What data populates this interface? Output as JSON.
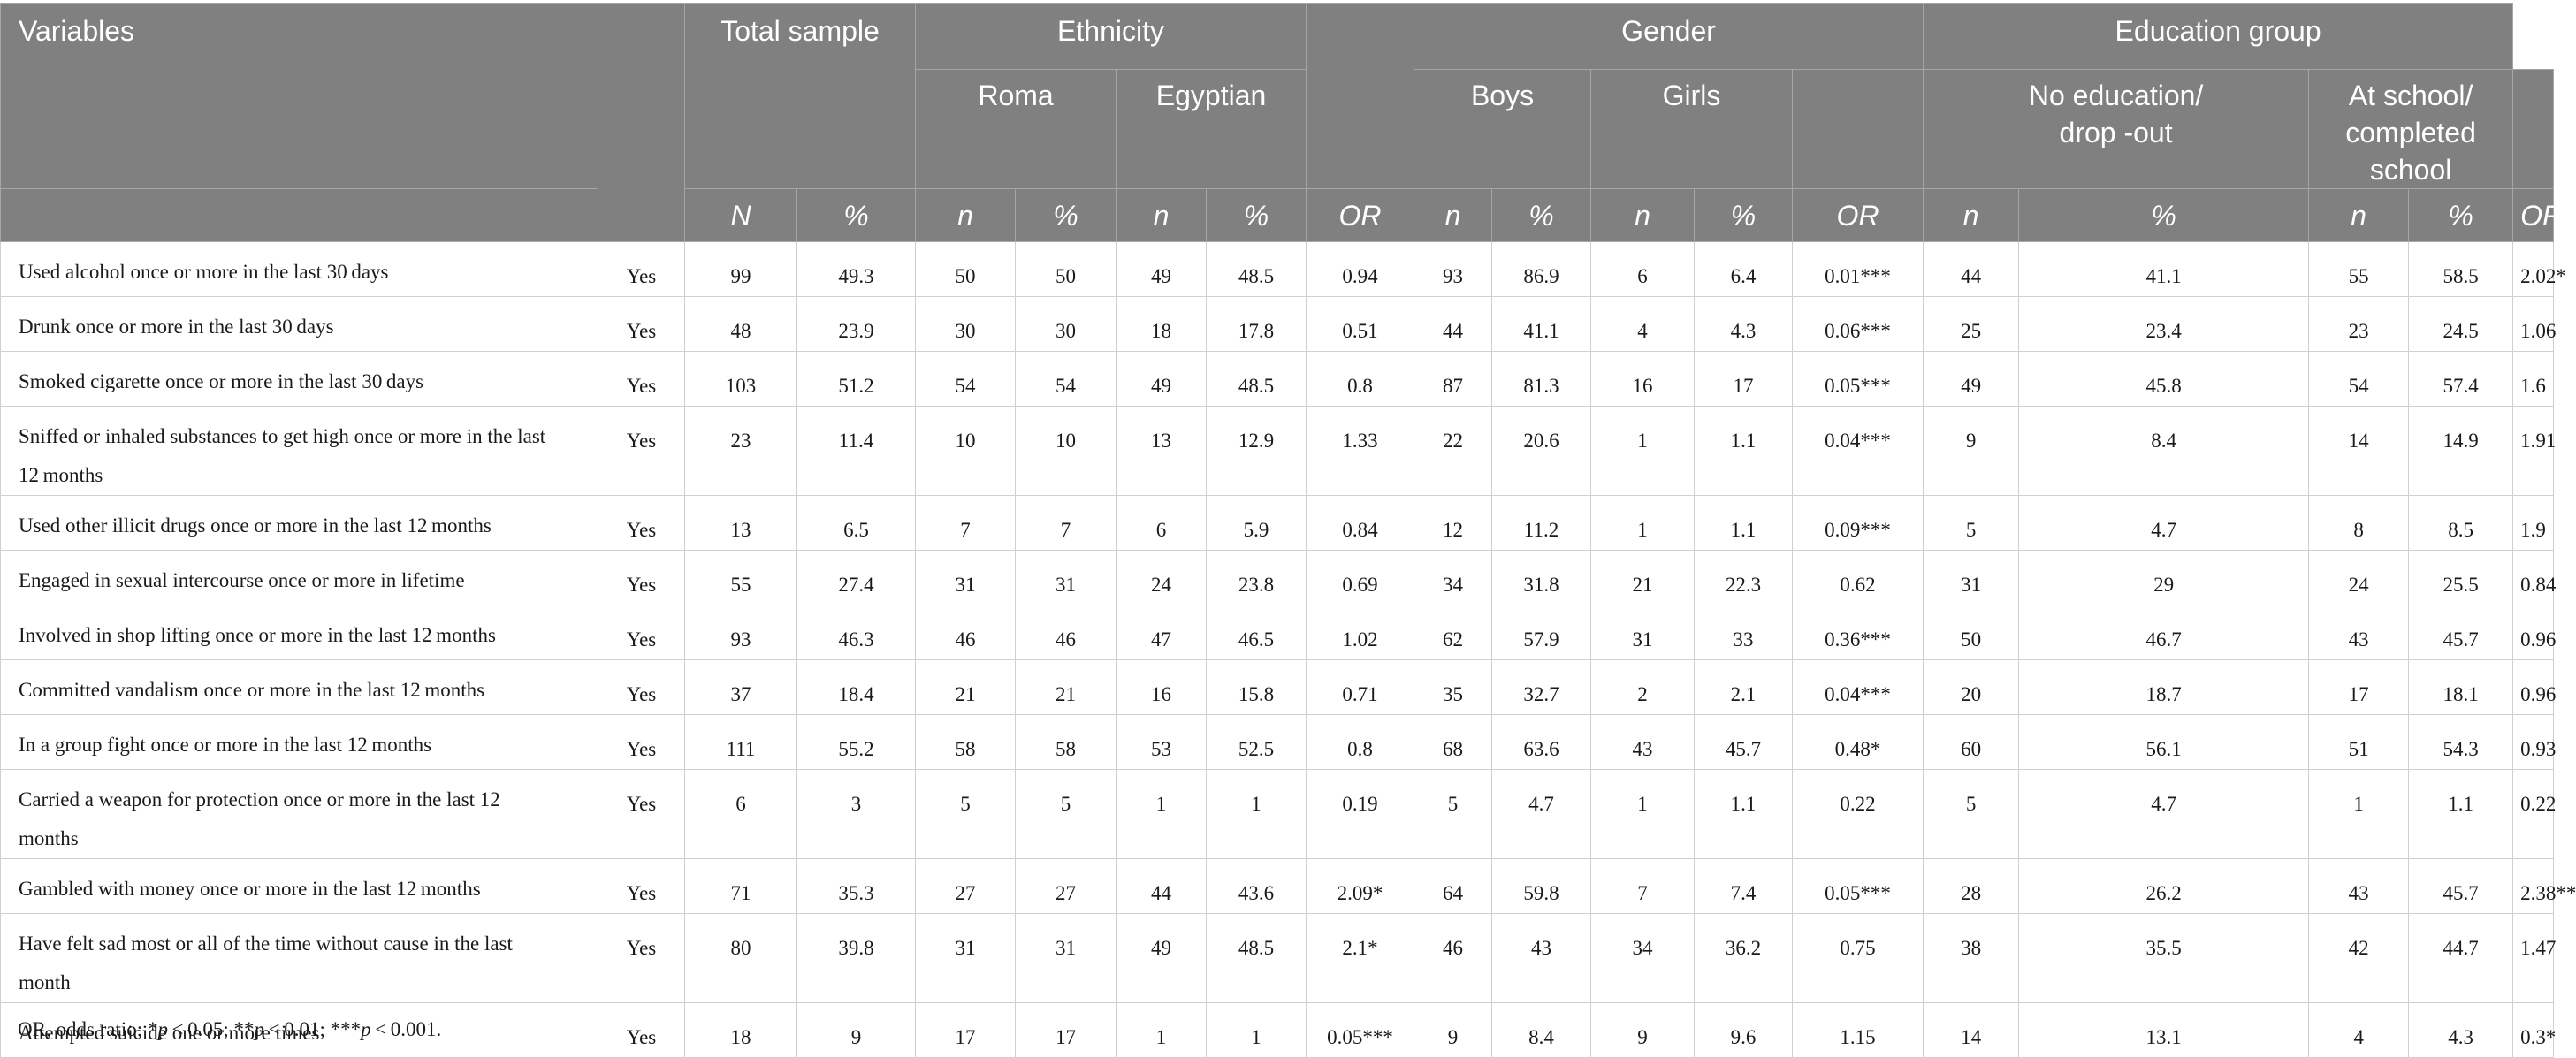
{
  "table": {
    "header": {
      "variables": "Variables",
      "total_sample": "Total sample",
      "ethnicity": "Ethnicity",
      "roma": "Roma",
      "egyptian": "Egyptian",
      "gender": "Gender",
      "boys": "Boys",
      "girls": "Girls",
      "education_group": "Education group",
      "no_education_line1": "No education/",
      "no_education_line2": "drop -out",
      "at_school_line1": "At school/",
      "at_school_line2": "completed school",
      "N": "N",
      "n": "n",
      "pct": "%",
      "OR": "OR"
    },
    "rows": [
      {
        "label": "Used alcohol once or more in the last 30 days",
        "resp": "Yes",
        "vals": [
          "99",
          "49.3",
          "50",
          "50",
          "49",
          "48.5",
          "0.94",
          "93",
          "86.9",
          "6",
          "6.4",
          "0.01***",
          "44",
          "41.1",
          "55",
          "58.5",
          "2.02*"
        ]
      },
      {
        "label": "Drunk once or more in the last 30 days",
        "resp": "Yes",
        "vals": [
          "48",
          "23.9",
          "30",
          "30",
          "18",
          "17.8",
          "0.51",
          "44",
          "41.1",
          "4",
          "4.3",
          "0.06***",
          "25",
          "23.4",
          "23",
          "24.5",
          "1.06"
        ]
      },
      {
        "label": "Smoked cigarette once or more in the last 30 days",
        "resp": "Yes",
        "vals": [
          "103",
          "51.2",
          "54",
          "54",
          "49",
          "48.5",
          "0.8",
          "87",
          "81.3",
          "16",
          "17",
          "0.05***",
          "49",
          "45.8",
          "54",
          "57.4",
          "1.6"
        ]
      },
      {
        "label": "Sniffed or inhaled substances to get high once or more in the last 12 months",
        "resp": "Yes",
        "vals": [
          "23",
          "11.4",
          "10",
          "10",
          "13",
          "12.9",
          "1.33",
          "22",
          "20.6",
          "1",
          "1.1",
          "0.04***",
          "9",
          "8.4",
          "14",
          "14.9",
          "1.91"
        ]
      },
      {
        "label": "Used other illicit drugs once or more in the last 12 months",
        "resp": "Yes",
        "vals": [
          "13",
          "6.5",
          "7",
          "7",
          "6",
          "5.9",
          "0.84",
          "12",
          "11.2",
          "1",
          "1.1",
          "0.09***",
          "5",
          "4.7",
          "8",
          "8.5",
          "1.9"
        ]
      },
      {
        "label": "Engaged in sexual intercourse once or more in lifetime",
        "resp": "Yes",
        "vals": [
          "55",
          "27.4",
          "31",
          "31",
          "24",
          "23.8",
          "0.69",
          "34",
          "31.8",
          "21",
          "22.3",
          "0.62",
          "31",
          "29",
          "24",
          "25.5",
          "0.84"
        ]
      },
      {
        "label": "Involved in shop lifting once or more in the last 12 months",
        "resp": "Yes",
        "vals": [
          "93",
          "46.3",
          "46",
          "46",
          "47",
          "46.5",
          "1.02",
          "62",
          "57.9",
          "31",
          "33",
          "0.36***",
          "50",
          "46.7",
          "43",
          "45.7",
          "0.96"
        ]
      },
      {
        "label": "Committed vandalism once or more in the last 12 months",
        "resp": "Yes",
        "vals": [
          "37",
          "18.4",
          "21",
          "21",
          "16",
          "15.8",
          "0.71",
          "35",
          "32.7",
          "2",
          "2.1",
          "0.04***",
          "20",
          "18.7",
          "17",
          "18.1",
          "0.96"
        ]
      },
      {
        "label": "In a group fight once or more in the last 12 months",
        "resp": "Yes",
        "vals": [
          "111",
          "55.2",
          "58",
          "58",
          "53",
          "52.5",
          "0.8",
          "68",
          "63.6",
          "43",
          "45.7",
          "0.48*",
          "60",
          "56.1",
          "51",
          "54.3",
          "0.93"
        ]
      },
      {
        "label": "Carried a weapon for protection once or more in the last 12 months",
        "resp": "Yes",
        "vals": [
          "6",
          "3",
          "5",
          "5",
          "1",
          "1",
          "0.19",
          "5",
          "4.7",
          "1",
          "1.1",
          "0.22",
          "5",
          "4.7",
          "1",
          "1.1",
          "0.22"
        ]
      },
      {
        "label": "Gambled with money once or more in the last 12 months",
        "resp": "Yes",
        "vals": [
          "71",
          "35.3",
          "27",
          "27",
          "44",
          "43.6",
          "2.09*",
          "64",
          "59.8",
          "7",
          "7.4",
          "0.05***",
          "28",
          "26.2",
          "43",
          "45.7",
          "2.38**"
        ]
      },
      {
        "label": "Have felt sad most or all of the time without cause in the last month",
        "resp": "Yes",
        "vals": [
          "80",
          "39.8",
          "31",
          "31",
          "49",
          "48.5",
          "2.1*",
          "46",
          "43",
          "34",
          "36.2",
          "0.75",
          "38",
          "35.5",
          "42",
          "44.7",
          "1.47"
        ]
      },
      {
        "label": "Attempted suicide one or more times",
        "resp": "Yes",
        "vals": [
          "18",
          "9",
          "17",
          "17",
          "1",
          "1",
          "0.05***",
          "9",
          "8.4",
          "9",
          "9.6",
          "1.15",
          "14",
          "13.1",
          "4",
          "4.3",
          "0.3*"
        ]
      }
    ]
  },
  "footnote": {
    "prefix": "OR, odds ratio; *",
    "p1": "p",
    "t1": " < 0.05; **",
    "p2": "p",
    "t2": " < 0.01; ***",
    "p3": "p",
    "t3": " < 0.001."
  },
  "colors": {
    "header_bg": "#808080",
    "header_text": "#ffffff",
    "body_text": "#1a1a1a",
    "grid": "#cfcfcf"
  }
}
